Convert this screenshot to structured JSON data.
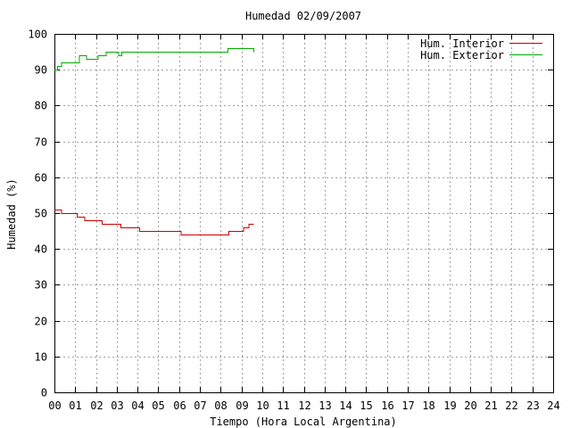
{
  "chart_data": {
    "type": "line",
    "title": "Humedad 02/09/2007",
    "xlabel": "Tiempo (Hora Local Argentina)",
    "ylabel": "Humedad (%)",
    "xlim": [
      0,
      24
    ],
    "ylim": [
      0,
      100
    ],
    "grid": true,
    "legend_position": "top-right",
    "x_tick_labels": [
      "00",
      "01",
      "02",
      "03",
      "04",
      "05",
      "06",
      "07",
      "08",
      "09",
      "10",
      "11",
      "12",
      "13",
      "14",
      "15",
      "16",
      "17",
      "18",
      "19",
      "20",
      "21",
      "22",
      "23",
      "24"
    ],
    "y_tick_labels": [
      "0",
      "10",
      "20",
      "30",
      "40",
      "50",
      "60",
      "70",
      "80",
      "90",
      "100"
    ],
    "series": [
      {
        "name": "Hum. Interior",
        "color": "#cc0000",
        "points": [
          [
            0.0,
            51
          ],
          [
            0.35,
            50
          ],
          [
            1.1,
            49
          ],
          [
            1.45,
            48
          ],
          [
            2.3,
            47
          ],
          [
            3.2,
            46
          ],
          [
            4.1,
            45
          ],
          [
            6.1,
            44
          ],
          [
            8.4,
            45
          ],
          [
            9.1,
            46
          ],
          [
            9.35,
            47
          ],
          [
            9.6,
            47
          ]
        ]
      },
      {
        "name": "Hum. Exterior",
        "color": "#00aa00",
        "points": [
          [
            0.0,
            90
          ],
          [
            0.15,
            91
          ],
          [
            0.3,
            91
          ],
          [
            0.35,
            92
          ],
          [
            1.2,
            94
          ],
          [
            1.55,
            93
          ],
          [
            2.0,
            93
          ],
          [
            2.1,
            94
          ],
          [
            2.5,
            95
          ],
          [
            3.1,
            94
          ],
          [
            3.25,
            95
          ],
          [
            8.35,
            96
          ],
          [
            9.5,
            96
          ],
          [
            9.6,
            95
          ]
        ]
      }
    ]
  }
}
